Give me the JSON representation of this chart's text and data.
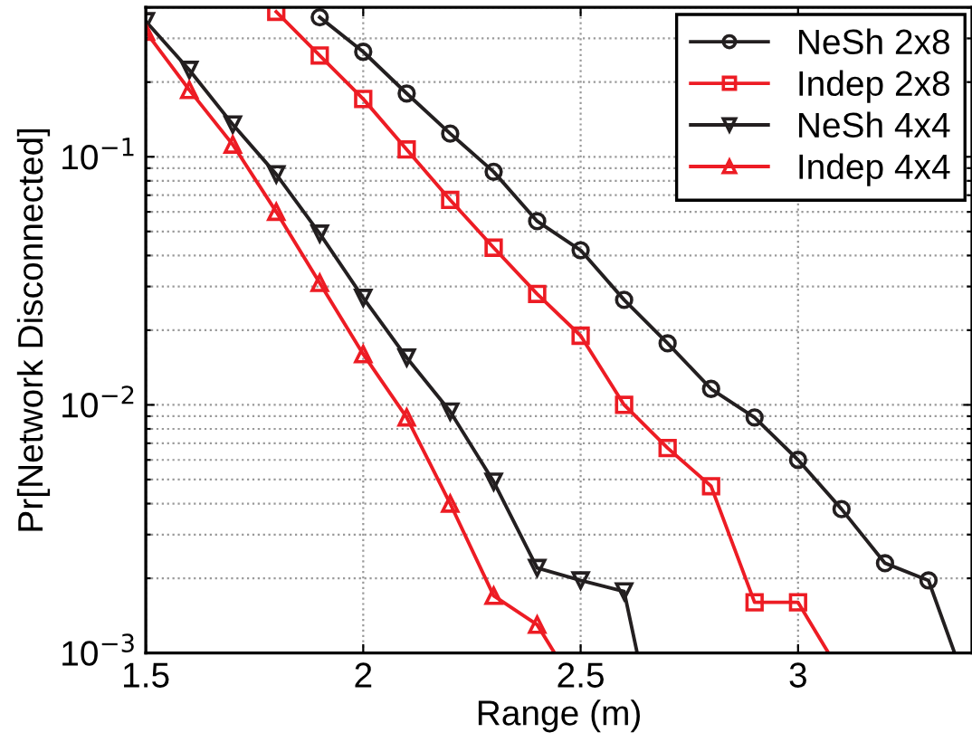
{
  "chart_data": {
    "type": "line",
    "xlabel": "Range (m)",
    "ylabel": "Pr[Network Disconnected]",
    "log": "y",
    "xlim": [
      1.5,
      3.4
    ],
    "xticks": [
      1.5,
      2,
      2.5,
      3
    ],
    "ylim": [
      0.001,
      0.4
    ],
    "yticks": [
      {
        "value": 0.001,
        "label": "10$^{−3}$"
      },
      {
        "value": 0.01,
        "label": "10$^{−2}$"
      },
      {
        "value": 0.1,
        "label": "10$^{−1}$"
      }
    ],
    "grid": true,
    "legend": "top right",
    "line_style": "solid",
    "series": [
      {
        "name": "NeSh 2x8",
        "color": "#231f20",
        "marker": "circle",
        "x": [
          1.9,
          2.0,
          2.1,
          2.2,
          2.3,
          2.4,
          2.5,
          2.6,
          2.7,
          2.8,
          2.9,
          3.0,
          3.1,
          3.2,
          3.3,
          3.36
        ],
        "values": [
          0.365,
          0.265,
          0.18,
          0.124,
          0.087,
          0.055,
          0.042,
          0.0265,
          0.0177,
          0.0116,
          0.0089,
          0.006,
          0.0038,
          0.0023,
          0.00196,
          0.001
        ]
      },
      {
        "name": "Indep 2x8",
        "color": "#ed1c24",
        "marker": "square",
        "x": [
          1.8,
          1.9,
          2.0,
          2.1,
          2.2,
          2.3,
          2.4,
          2.5,
          2.6,
          2.7,
          2.8,
          2.9,
          3.0,
          3.07
        ],
        "values": [
          0.384,
          0.256,
          0.171,
          0.107,
          0.067,
          0.043,
          0.028,
          0.019,
          0.01,
          0.0067,
          0.0047,
          0.0016,
          0.0016,
          0.001
        ]
      },
      {
        "name": "NeSh 4x4",
        "color": "#231f20",
        "marker": "triangle_down",
        "x": [
          1.5,
          1.6,
          1.7,
          1.8,
          1.9,
          2.0,
          2.1,
          2.2,
          2.3,
          2.4,
          2.5,
          2.6,
          2.63
        ],
        "values": [
          0.352,
          0.224,
          0.135,
          0.085,
          0.049,
          0.027,
          0.0155,
          0.0094,
          0.0049,
          0.0022,
          0.00196,
          0.00177,
          0.001
        ]
      },
      {
        "name": "Indep 4x4",
        "color": "#ed1c24",
        "marker": "triangle",
        "x": [
          1.5,
          1.6,
          1.7,
          1.8,
          1.9,
          2.0,
          2.1,
          2.2,
          2.3,
          2.4,
          2.44
        ],
        "values": [
          0.319,
          0.186,
          0.112,
          0.06,
          0.031,
          0.016,
          0.0089,
          0.004,
          0.0017,
          0.0013,
          0.001
        ]
      }
    ]
  }
}
